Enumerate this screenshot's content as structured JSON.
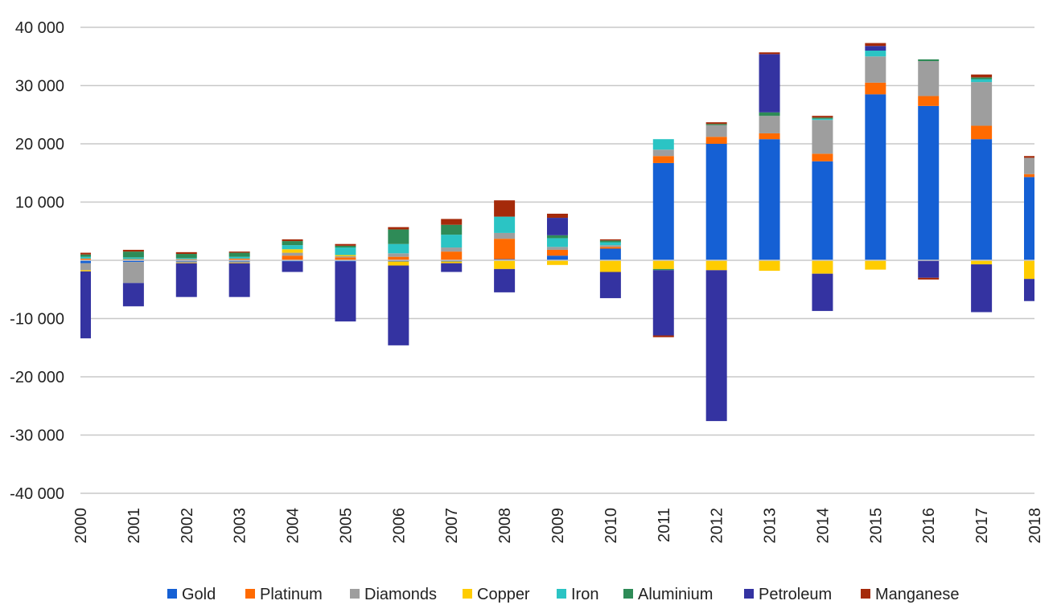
{
  "chart_data": {
    "type": "bar",
    "stacked": true,
    "title": "",
    "xlabel": "",
    "ylabel": "",
    "ylim": [
      -40000,
      40000
    ],
    "yticks": [
      40000,
      30000,
      20000,
      10000,
      0,
      -10000,
      -20000,
      -30000,
      -40000
    ],
    "ytick_labels": [
      "40 000",
      "30 000",
      "20 000",
      "10 000",
      "",
      "-10 000",
      "-20 000",
      "-30 000",
      "-40 000"
    ],
    "grid": true,
    "legend_position": "bottom",
    "categories": [
      "2000",
      "2001",
      "2002",
      "2003",
      "2004",
      "2005",
      "2006",
      "2007",
      "2008",
      "2009",
      "2010",
      "2011",
      "2012",
      "2013",
      "2014",
      "2015",
      "2016",
      "2017",
      "2018"
    ],
    "series": [
      {
        "name": "Gold",
        "color": "#1560D4",
        "values": [
          -500,
          -300,
          -200,
          -200,
          -200,
          -200,
          -200,
          -200,
          200,
          800,
          2000,
          16700,
          20000,
          20800,
          17000,
          28500,
          26500,
          20800,
          14300
        ]
      },
      {
        "name": "Platinum",
        "color": "#FF6A00",
        "values": [
          300,
          200,
          200,
          300,
          800,
          500,
          600,
          1500,
          3500,
          1000,
          300,
          1200,
          1200,
          1000,
          1300,
          2000,
          1700,
          2300,
          500
        ]
      },
      {
        "name": "Diamonds",
        "color": "#9E9E9E",
        "values": [
          -1200,
          -3600,
          -200,
          -200,
          500,
          200,
          600,
          700,
          1000,
          500,
          300,
          1100,
          2000,
          3000,
          5800,
          4500,
          6000,
          7500,
          2800
        ]
      },
      {
        "name": "Copper",
        "color": "#FFCC00",
        "values": [
          -200,
          0,
          -100,
          -100,
          600,
          200,
          -700,
          -300,
          -1500,
          -800,
          -2000,
          -1500,
          -1700,
          -1800,
          -2300,
          -1600,
          0,
          -700,
          -3200
        ]
      },
      {
        "name": "Iron",
        "color": "#2BC4C4",
        "values": [
          300,
          300,
          200,
          300,
          700,
          1300,
          1600,
          2200,
          2800,
          1500,
          500,
          1800,
          0,
          0,
          200,
          1000,
          0,
          500,
          0
        ]
      },
      {
        "name": "Aluminium",
        "color": "#2E8B57",
        "values": [
          400,
          1000,
          700,
          700,
          700,
          300,
          2500,
          1700,
          0,
          500,
          300,
          -200,
          200,
          600,
          200,
          0,
          300,
          300,
          0
        ]
      },
      {
        "name": "Petroleum",
        "color": "#3433A1",
        "values": [
          -11500,
          -4000,
          -5800,
          -5800,
          -1800,
          -10300,
          -13700,
          -1500,
          -4000,
          3000,
          -4500,
          -11200,
          -25900,
          10000,
          -6400,
          800,
          -3000,
          -8200,
          -3800
        ]
      },
      {
        "name": "Manganese",
        "color": "#A52A0A",
        "values": [
          300,
          300,
          300,
          200,
          300,
          300,
          400,
          1000,
          2800,
          700,
          200,
          -300,
          300,
          300,
          300,
          500,
          -300,
          500,
          300
        ]
      }
    ]
  }
}
